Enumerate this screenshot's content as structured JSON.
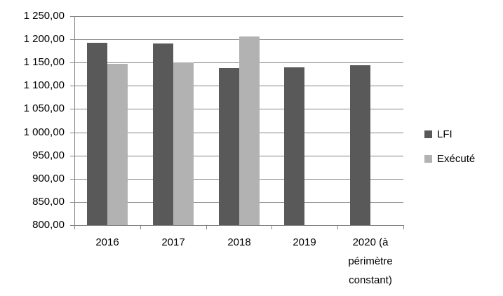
{
  "chart_data": {
    "type": "bar",
    "title": "",
    "xlabel": "",
    "ylabel": "",
    "categories": [
      "2016",
      "2017",
      "2018",
      "2019",
      "2020 (à périmètre constant)"
    ],
    "series": [
      {
        "name": "LFI",
        "color": "#595959",
        "values": [
          1192,
          1191,
          1139,
          1140,
          1145
        ]
      },
      {
        "name": "Exécuté",
        "color": "#b2b2b2",
        "values": [
          1147,
          1151,
          1206,
          null,
          null
        ]
      }
    ],
    "ylim": [
      800,
      1250
    ],
    "y_tick_step": 50,
    "y_ticks": [
      1250,
      1200,
      1150,
      1100,
      1050,
      1000,
      950,
      900,
      850,
      800
    ],
    "y_tick_labels": [
      "1 250,00",
      "1 200,00",
      "1 150,00",
      "1 100,00",
      "1 050,00",
      "1 000,00",
      "950,00",
      "900,00",
      "850,00",
      "800,00"
    ],
    "grid": true,
    "legend_position": "right",
    "colors": {
      "gridline": "#848484",
      "axis": "#848484",
      "text": "#000000",
      "background": "#ffffff"
    }
  }
}
